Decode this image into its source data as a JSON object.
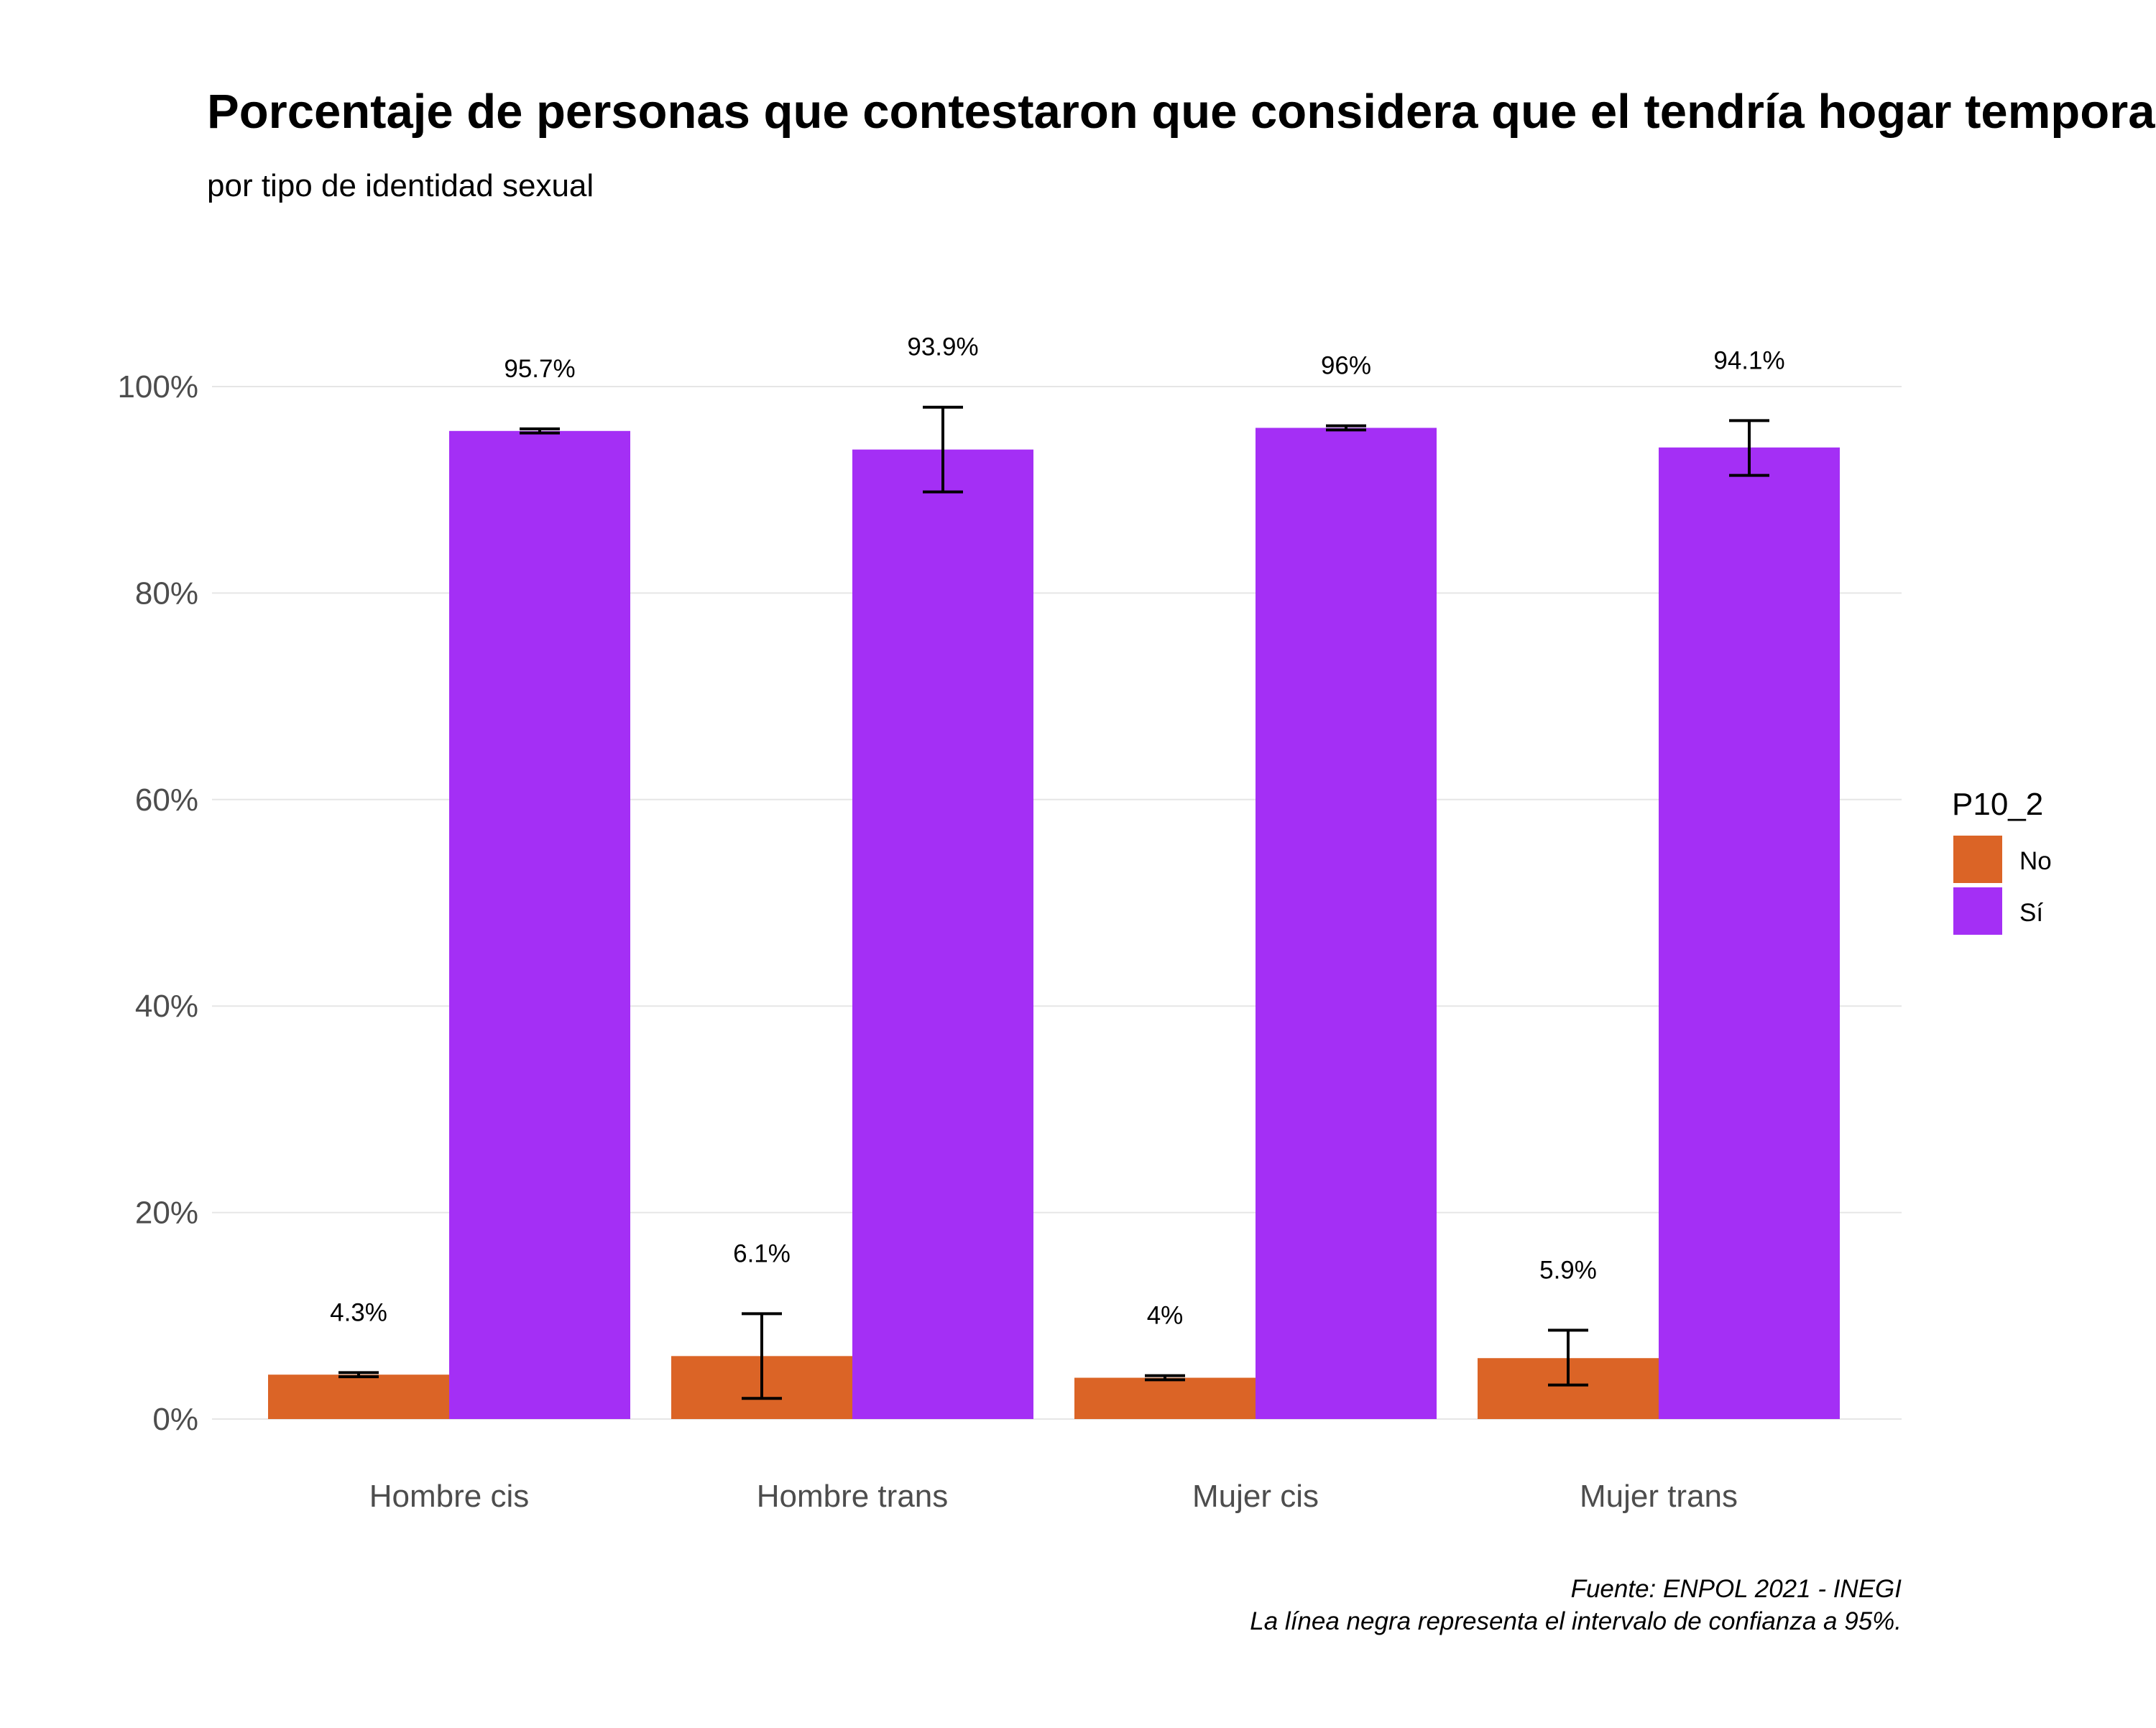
{
  "chart_data": {
    "type": "bar",
    "title": "Porcentaje de personas que contestaron que considera que el tendría hogar temporal a su sa",
    "subtitle": "por tipo de identidad sexual",
    "xlabel": "",
    "ylabel": "",
    "ylim": [
      0,
      100
    ],
    "yticks": [
      "0%",
      "20%",
      "40%",
      "60%",
      "80%",
      "100%"
    ],
    "ytick_values": [
      0,
      20,
      40,
      60,
      80,
      100
    ],
    "categories": [
      "Hombre cis",
      "Hombre trans",
      "Mujer cis",
      "Mujer trans"
    ],
    "legend": {
      "title": "P10_2",
      "placement": "right"
    },
    "series": [
      {
        "name": "No",
        "color": "#db6426",
        "values": [
          4.3,
          6.1,
          4.0,
          5.9
        ],
        "labels": [
          "4.3%",
          "6.1%",
          "4%",
          "5.9%"
        ],
        "ci_low": [
          4.1,
          2.0,
          3.8,
          3.3
        ],
        "ci_high": [
          4.5,
          10.2,
          4.2,
          8.6
        ]
      },
      {
        "name": "Sí",
        "color": "#a42ff5",
        "values": [
          95.7,
          93.9,
          96.0,
          94.1
        ],
        "labels": [
          "95.7%",
          "93.9%",
          "96%",
          "94.1%"
        ],
        "ci_low": [
          95.5,
          89.8,
          95.8,
          91.4
        ],
        "ci_high": [
          95.9,
          98.0,
          96.2,
          96.7
        ]
      }
    ],
    "grid": true,
    "caption": [
      "Fuente: ENPOL 2021 - INEGI",
      "La línea negra representa el intervalo de confianza a 95%."
    ]
  }
}
